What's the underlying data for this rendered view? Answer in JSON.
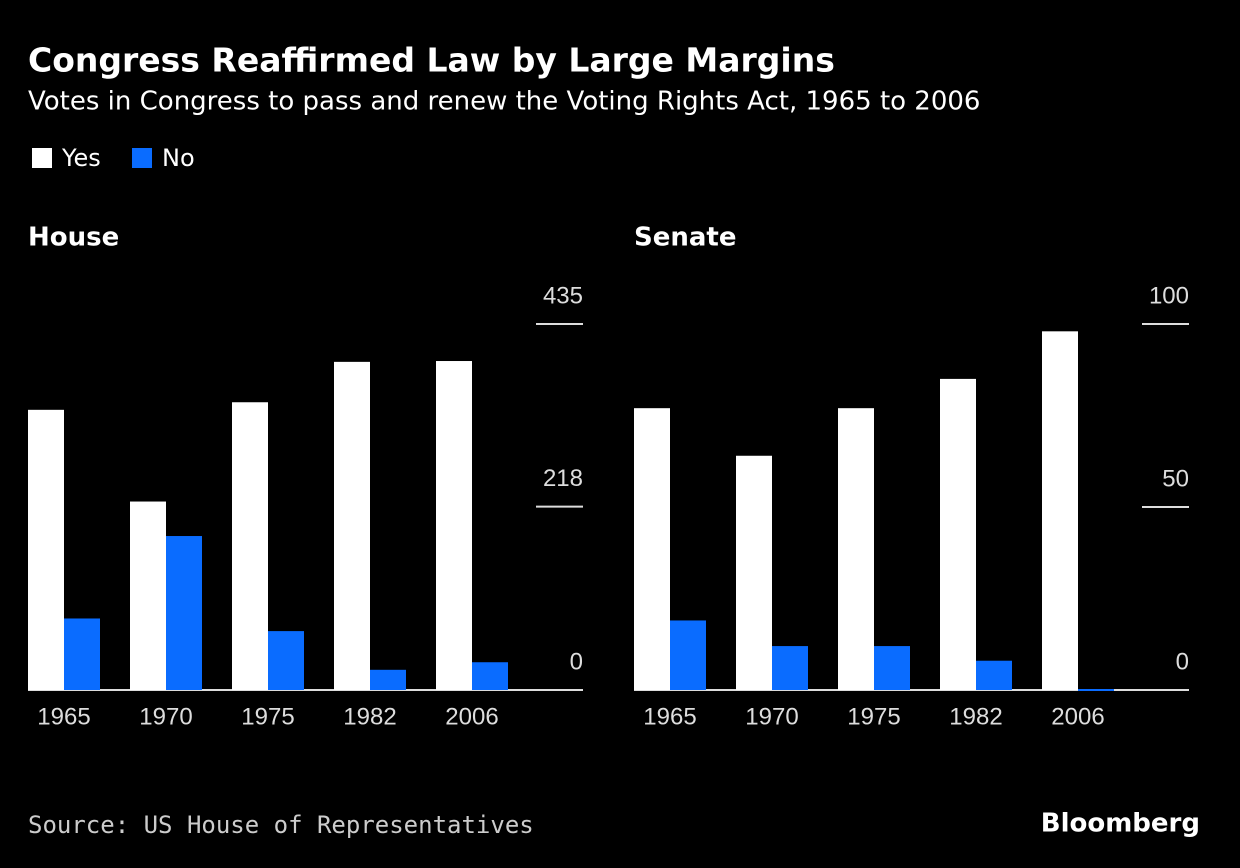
{
  "title": "Congress Reaffirmed Law by Large Margins",
  "subtitle": "Votes in Congress to pass and renew the Voting Rights Act, 1965 to 2006",
  "source": "Source: US House of Representatives",
  "brand": "Bloomberg",
  "chart_data": [
    {
      "type": "bar",
      "title": "House",
      "categories": [
        "1965",
        "1970",
        "1975",
        "1982",
        "2006"
      ],
      "series": [
        {
          "name": "Yes",
          "color": "#ffffff",
          "values": [
            333,
            224,
            342,
            390,
            391
          ]
        },
        {
          "name": "No",
          "color": "#0a6cff",
          "values": [
            85,
            183,
            70,
            24,
            33
          ]
        }
      ],
      "ylim": [
        0,
        435
      ],
      "yticks": [
        0,
        218,
        435
      ]
    },
    {
      "type": "bar",
      "title": "Senate",
      "categories": [
        "1965",
        "1970",
        "1975",
        "1982",
        "2006"
      ],
      "series": [
        {
          "name": "Yes",
          "color": "#ffffff",
          "values": [
            77,
            64,
            77,
            85,
            98
          ]
        },
        {
          "name": "No",
          "color": "#0a6cff",
          "values": [
            19,
            12,
            12,
            8,
            0
          ]
        }
      ],
      "ylim": [
        0,
        100
      ],
      "yticks": [
        0,
        50,
        100
      ]
    }
  ]
}
